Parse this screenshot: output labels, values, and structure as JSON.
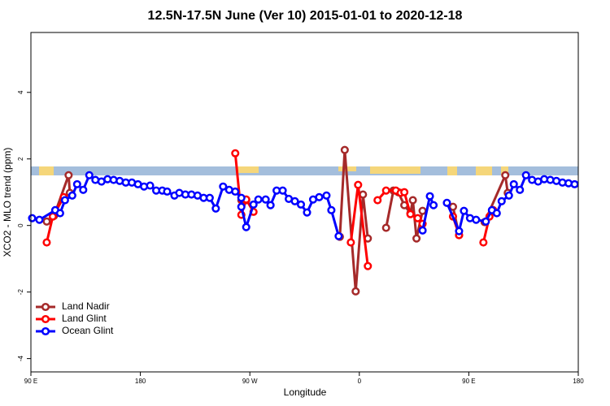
{
  "chart_data": {
    "type": "line",
    "title": "12.5N-17.5N June (Ver 10)   2015-01-01 to 2020-12-18",
    "xlabel": "Longitude",
    "ylabel": "XCO2 - MLO trend (ppm)",
    "xlim": [
      90,
      540
    ],
    "ylim": [
      -4.4,
      5.8
    ],
    "xticks": [
      {
        "value": 90,
        "label": "90 E"
      },
      180,
      {
        "value": 270,
        "label": "90 W"
      },
      {
        "value": 360,
        "label": "0"
      },
      {
        "value": 450,
        "label": "90 E"
      },
      {
        "value": 540,
        "label": "180"
      }
    ],
    "yticks": [
      -4,
      -2,
      0,
      2,
      4
    ],
    "legend": "bottom-left",
    "series": [
      {
        "name": "Land Nadir",
        "color": "#a52a2a",
        "x": [
          103,
          109,
          121,
          122,
          null,
          263,
          267,
          null,
          344,
          348,
          357,
          363,
          367,
          null,
          382,
          388,
          392,
          397,
          402,
          404,
          407,
          412,
          null,
          437,
          442,
          null,
          463,
          480,
          482
        ],
        "values": [
          0.12,
          0.29,
          1.51,
          0.98,
          null,
          0.76,
          0.76,
          null,
          -0.34,
          2.27,
          -1.98,
          0.93,
          -0.39,
          null,
          -0.07,
          1.05,
          1.0,
          0.61,
          0.37,
          0.76,
          -0.39,
          0.44,
          null,
          0.56,
          -0.29,
          null,
          0.1,
          1.51,
          0.98
        ]
      },
      {
        "name": "Land Glint",
        "color": "#ff0000",
        "x": [
          103,
          108,
          117,
          null,
          258,
          263,
          267,
          273,
          null,
          353,
          359,
          367,
          null,
          375,
          382,
          390,
          394,
          397,
          402,
          408,
          412,
          null,
          437,
          442,
          null,
          462,
          467,
          470
        ],
        "values": [
          -0.51,
          0.27,
          0.85,
          null,
          2.17,
          0.32,
          0.78,
          0.41,
          null,
          -0.51,
          1.22,
          -1.22,
          null,
          0.76,
          1.05,
          1.05,
          0.98,
          1.0,
          0.34,
          0.22,
          0.05,
          null,
          0.27,
          -0.29,
          null,
          -0.51,
          0.27,
          0.46
        ]
      },
      {
        "name": "Ocean Glint",
        "color": "#0000ff",
        "x": [
          91,
          97,
          110,
          114,
          118,
          124,
          128,
          133,
          138,
          143,
          148,
          153,
          158,
          163,
          168,
          173,
          178,
          183,
          188,
          193,
          198,
          202,
          208,
          212,
          217,
          222,
          227,
          232,
          237,
          242,
          248,
          253,
          258,
          263,
          263,
          267,
          273,
          277,
          283,
          287,
          292,
          297,
          302,
          307,
          312,
          317,
          322,
          327,
          333,
          337,
          343,
          null,
          412,
          418,
          421,
          null,
          432,
          442,
          446,
          451,
          456,
          464,
          469,
          473,
          477,
          483,
          487,
          492,
          497,
          502,
          507,
          512,
          517,
          522,
          527,
          532,
          537
        ],
        "values": [
          0.22,
          0.17,
          0.46,
          0.37,
          0.76,
          0.9,
          1.24,
          1.07,
          1.51,
          1.37,
          1.32,
          1.39,
          1.37,
          1.34,
          1.29,
          1.29,
          1.24,
          1.17,
          1.2,
          1.05,
          1.05,
          1.02,
          0.9,
          0.98,
          0.93,
          0.93,
          0.9,
          0.83,
          0.83,
          0.51,
          1.17,
          1.07,
          1.02,
          0.83,
          0.56,
          -0.05,
          0.63,
          0.78,
          0.78,
          0.61,
          1.05,
          1.05,
          0.8,
          0.73,
          0.63,
          0.39,
          0.78,
          0.85,
          0.9,
          0.46,
          -0.32,
          null,
          -0.15,
          0.88,
          0.61,
          null,
          0.68,
          -0.17,
          0.44,
          0.22,
          0.17,
          0.12,
          0.46,
          0.37,
          0.73,
          0.9,
          1.24,
          1.07,
          1.51,
          1.37,
          1.32,
          1.39,
          1.37,
          1.34,
          1.29,
          1.27,
          1.24
        ]
      }
    ]
  }
}
